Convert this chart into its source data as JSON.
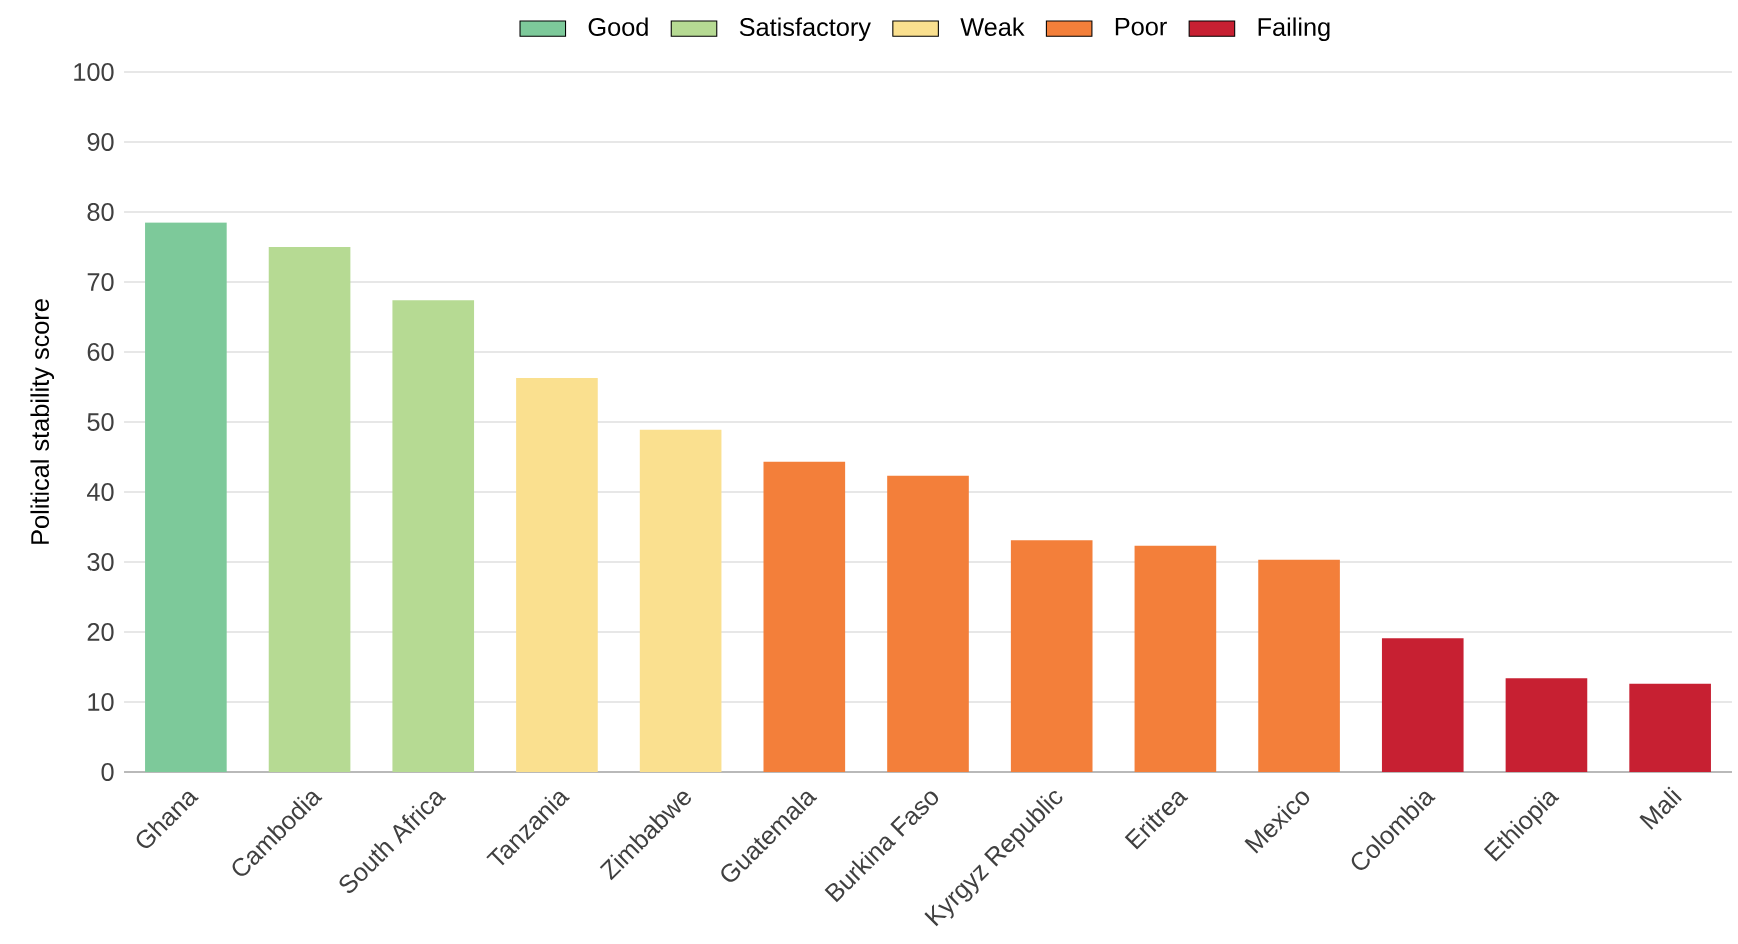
{
  "chart_data": {
    "type": "bar",
    "ylabel": "Political stability score",
    "categories": [
      "Ghana",
      "Cambodia",
      "South Africa",
      "Tanzania",
      "Zimbabwe",
      "Guatemala",
      "Burkina Faso",
      "Kyrgyz Republic",
      "Eritrea",
      "Mexico",
      "Colombia",
      "Ethiopia",
      "Mali"
    ],
    "series": [
      {
        "name": "Good",
        "color": "#7dc99a",
        "values": [
          78.5,
          null,
          null,
          null,
          null,
          null,
          null,
          null,
          null,
          null,
          null,
          null,
          null
        ]
      },
      {
        "name": "Satisfactory",
        "color": "#b6da93",
        "values": [
          null,
          75,
          67.4,
          null,
          null,
          null,
          null,
          null,
          null,
          null,
          null,
          null,
          null
        ]
      },
      {
        "name": "Weak",
        "color": "#fae08f",
        "values": [
          null,
          null,
          null,
          56.3,
          48.9,
          null,
          null,
          null,
          null,
          null,
          null,
          null,
          null
        ]
      },
      {
        "name": "Poor",
        "color": "#f37f3a",
        "values": [
          null,
          null,
          null,
          null,
          null,
          44.3,
          42.3,
          33.1,
          32.3,
          30.3,
          null,
          null,
          null
        ]
      },
      {
        "name": "Failing",
        "color": "#c72032",
        "values": [
          null,
          null,
          null,
          null,
          null,
          null,
          null,
          null,
          null,
          null,
          19.1,
          13.4,
          12.6
        ]
      }
    ],
    "ylim": [
      0,
      100
    ],
    "yticks": [
      0,
      10,
      20,
      30,
      40,
      50,
      60,
      70,
      80,
      90,
      100
    ],
    "grid": "y",
    "legend": "top"
  }
}
